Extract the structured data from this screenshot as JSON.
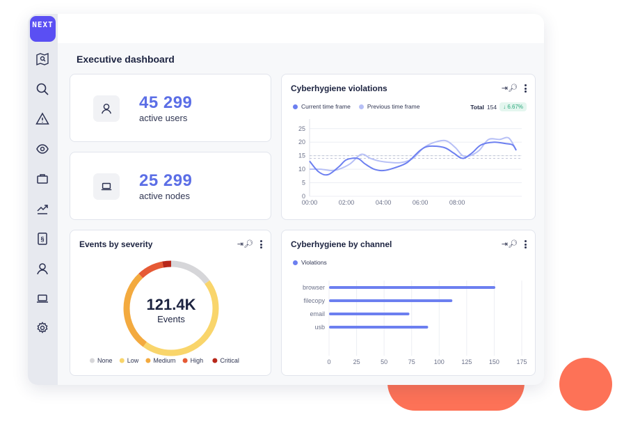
{
  "logo": {
    "text": "NEXT"
  },
  "sidebar": {
    "items": [
      {
        "name": "map-search-icon"
      },
      {
        "name": "search-icon"
      },
      {
        "name": "warning-icon"
      },
      {
        "name": "eye-icon"
      },
      {
        "name": "briefcase-icon"
      },
      {
        "name": "trend-icon"
      },
      {
        "name": "policy-icon"
      },
      {
        "name": "user-icon"
      },
      {
        "name": "laptop-icon"
      },
      {
        "name": "gear-icon"
      }
    ]
  },
  "page": {
    "title": "Executive dashboard"
  },
  "stats": [
    {
      "value": "45 299",
      "label": "active users",
      "icon": "user-icon"
    },
    {
      "value": "25 299",
      "label": "active nodes",
      "icon": "laptop-icon"
    }
  ],
  "violations": {
    "title": "Cyberhygiene violations",
    "legend_current": "Current time frame",
    "legend_previous": "Previous time frame",
    "total_label": "Total",
    "total_value": "154",
    "change": "↓ 6.67%",
    "colors": {
      "current": "#6c7ff0",
      "previous": "#b7c0f6"
    }
  },
  "severity": {
    "title": "Events by severity",
    "center_value": "121.4K",
    "center_label": "Events"
  },
  "channel": {
    "title": "Cyberhygiene by channel",
    "legend": "Violations"
  },
  "chart_data": [
    {
      "type": "line",
      "title": "Cyberhygiene violations",
      "x_ticks": [
        "00:00",
        "02:00",
        "04:00",
        "06:00",
        "08:00"
      ],
      "y_ticks": [
        0,
        5,
        10,
        15,
        20,
        25
      ],
      "ylim": [
        0,
        27
      ],
      "xlim": [
        0,
        11.5
      ],
      "grid": "horizontal",
      "reference_lines": [
        15,
        14
      ],
      "series": [
        {
          "name": "Current time frame",
          "color": "#6c7ff0",
          "points": [
            [
              0,
              13
            ],
            [
              0.5,
              9
            ],
            [
              1,
              8
            ],
            [
              1.6,
              11
            ],
            [
              2,
              13.5
            ],
            [
              2.6,
              14
            ],
            [
              3,
              12
            ],
            [
              3.5,
              10
            ],
            [
              4,
              9.5
            ],
            [
              4.6,
              10.5
            ],
            [
              5.3,
              12.5
            ],
            [
              6,
              17
            ],
            [
              6.5,
              18.5
            ],
            [
              7.3,
              18
            ],
            [
              7.8,
              16
            ],
            [
              8.3,
              14
            ],
            [
              8.8,
              16
            ],
            [
              9.3,
              19
            ],
            [
              10,
              20
            ],
            [
              10.6,
              19.5
            ],
            [
              11,
              19
            ],
            [
              11.2,
              17
            ]
          ]
        },
        {
          "name": "Previous time frame",
          "color": "#b7c0f6",
          "points": [
            [
              0,
              10
            ],
            [
              0.6,
              10
            ],
            [
              1.2,
              9.5
            ],
            [
              1.6,
              10
            ],
            [
              2.2,
              12
            ],
            [
              2.8,
              15.5
            ],
            [
              3.3,
              14
            ],
            [
              3.8,
              13
            ],
            [
              4.4,
              12.5
            ],
            [
              5,
              12.5
            ],
            [
              5.6,
              14
            ],
            [
              6.2,
              18
            ],
            [
              6.8,
              20
            ],
            [
              7.4,
              20.5
            ],
            [
              7.9,
              18
            ],
            [
              8.3,
              15
            ],
            [
              8.7,
              15
            ],
            [
              9.2,
              17
            ],
            [
              9.7,
              21
            ],
            [
              10.3,
              21
            ],
            [
              10.8,
              21.5
            ],
            [
              11.2,
              17
            ]
          ]
        }
      ]
    },
    {
      "type": "pie",
      "title": "Events by severity",
      "categories": [
        "None",
        "Low",
        "Medium",
        "High",
        "Critical"
      ],
      "values": [
        15,
        45,
        28,
        9,
        3
      ],
      "colors": [
        "#d6d6d9",
        "#f9d56b",
        "#f3aa3f",
        "#e65a35",
        "#b8271a"
      ],
      "legend_position": "bottom"
    },
    {
      "type": "bar",
      "orientation": "horizontal",
      "title": "Cyberhygiene by channel",
      "categories": [
        "browser",
        "filecopy",
        "email",
        "usb"
      ],
      "series": [
        {
          "name": "Violations",
          "values": [
            151,
            112,
            73,
            90
          ],
          "color": "#6c7ff0"
        }
      ],
      "x_ticks": [
        0,
        25,
        50,
        75,
        100,
        125,
        150,
        175
      ],
      "xlim": [
        0,
        175
      ],
      "legend_position": "top-left"
    }
  ]
}
